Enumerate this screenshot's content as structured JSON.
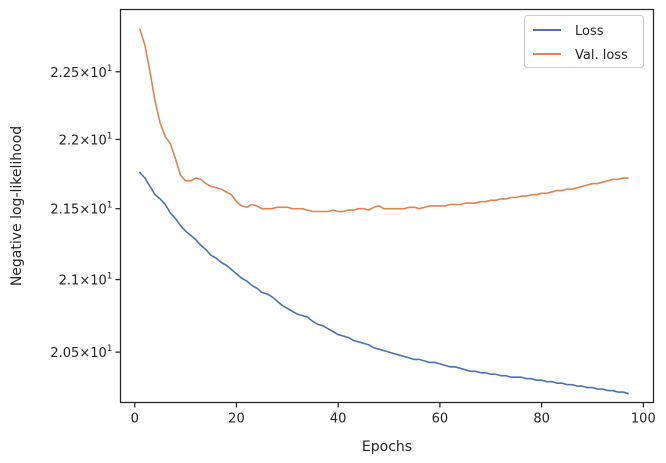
{
  "chart_data": {
    "type": "line",
    "title": "",
    "xlabel": "Epochs",
    "ylabel": "Negative log-likelihood",
    "xlim": [
      -2.8,
      102
    ],
    "ylim": [
      20.16,
      22.97
    ],
    "x_ticks": [
      0,
      20,
      40,
      60,
      80,
      100
    ],
    "x_tick_labels": [
      "0",
      "20",
      "40",
      "60",
      "80",
      "100"
    ],
    "y_ticks": [
      20.5,
      21.0,
      21.5,
      22.0,
      22.5
    ],
    "y_tick_labels": [
      {
        "mantissa": "2.05",
        "exp": "1"
      },
      {
        "mantissa": "2.1",
        "exp": "1"
      },
      {
        "mantissa": "2.15",
        "exp": "1"
      },
      {
        "mantissa": "2.2",
        "exp": "1"
      },
      {
        "mantissa": "2.25",
        "exp": "1"
      }
    ],
    "y_scale": "log",
    "grid": false,
    "legend_position": "top-right",
    "series": [
      {
        "name": "Loss",
        "color": "#4c72b0",
        "x": [
          1,
          2,
          3,
          4,
          5,
          6,
          7,
          8,
          9,
          10,
          11,
          12,
          13,
          14,
          15,
          16,
          17,
          18,
          19,
          20,
          21,
          22,
          23,
          24,
          25,
          26,
          27,
          28,
          29,
          30,
          31,
          32,
          33,
          34,
          35,
          36,
          37,
          38,
          39,
          40,
          41,
          42,
          43,
          44,
          45,
          46,
          47,
          48,
          49,
          50,
          51,
          52,
          53,
          54,
          55,
          56,
          57,
          58,
          59,
          60,
          61,
          62,
          63,
          64,
          65,
          66,
          67,
          68,
          69,
          70,
          71,
          72,
          73,
          74,
          75,
          76,
          77,
          78,
          79,
          80,
          81,
          82,
          83,
          84,
          85,
          86,
          87,
          88,
          89,
          90,
          91,
          92,
          93,
          94,
          95,
          96,
          97
        ],
        "values": [
          21.76,
          21.72,
          21.66,
          21.6,
          21.57,
          21.53,
          21.47,
          21.43,
          21.38,
          21.34,
          21.31,
          21.28,
          21.24,
          21.21,
          21.17,
          21.15,
          21.12,
          21.1,
          21.07,
          21.04,
          21.01,
          20.99,
          20.96,
          20.94,
          20.91,
          20.9,
          20.88,
          20.85,
          20.82,
          20.8,
          20.78,
          20.76,
          20.75,
          20.74,
          20.71,
          20.69,
          20.68,
          20.66,
          20.64,
          20.62,
          20.61,
          20.6,
          20.58,
          20.57,
          20.56,
          20.55,
          20.53,
          20.52,
          20.51,
          20.5,
          20.49,
          20.48,
          20.47,
          20.46,
          20.45,
          20.45,
          20.44,
          20.43,
          20.43,
          20.42,
          20.41,
          20.4,
          20.4,
          20.39,
          20.38,
          20.37,
          20.37,
          20.36,
          20.36,
          20.35,
          20.35,
          20.34,
          20.34,
          20.33,
          20.33,
          20.33,
          20.32,
          20.32,
          20.31,
          20.31,
          20.3,
          20.3,
          20.29,
          20.29,
          20.28,
          20.28,
          20.27,
          20.27,
          20.26,
          20.26,
          20.25,
          20.25,
          20.24,
          20.24,
          20.23,
          20.23,
          20.22
        ]
      },
      {
        "name": "Val. loss",
        "color": "#dd8452",
        "x": [
          1,
          2,
          3,
          4,
          5,
          6,
          7,
          8,
          9,
          10,
          11,
          12,
          13,
          14,
          15,
          16,
          17,
          18,
          19,
          20,
          21,
          22,
          23,
          24,
          25,
          26,
          27,
          28,
          29,
          30,
          31,
          32,
          33,
          34,
          35,
          36,
          37,
          38,
          39,
          40,
          41,
          42,
          43,
          44,
          45,
          46,
          47,
          48,
          49,
          50,
          51,
          52,
          53,
          54,
          55,
          56,
          57,
          58,
          59,
          60,
          61,
          62,
          63,
          64,
          65,
          66,
          67,
          68,
          69,
          70,
          71,
          72,
          73,
          74,
          75,
          76,
          77,
          78,
          79,
          80,
          81,
          82,
          83,
          84,
          85,
          86,
          87,
          88,
          89,
          90,
          91,
          92,
          93,
          94,
          95,
          96,
          97
        ],
        "values": [
          22.82,
          22.7,
          22.5,
          22.28,
          22.12,
          22.02,
          21.97,
          21.86,
          21.74,
          21.7,
          21.7,
          21.72,
          21.71,
          21.68,
          21.66,
          21.65,
          21.64,
          21.62,
          21.6,
          21.55,
          21.52,
          21.51,
          21.53,
          21.52,
          21.5,
          21.5,
          21.5,
          21.51,
          21.51,
          21.51,
          21.5,
          21.5,
          21.5,
          21.49,
          21.48,
          21.48,
          21.48,
          21.48,
          21.49,
          21.48,
          21.48,
          21.49,
          21.49,
          21.5,
          21.5,
          21.49,
          21.51,
          21.52,
          21.5,
          21.5,
          21.5,
          21.5,
          21.5,
          21.51,
          21.51,
          21.5,
          21.51,
          21.52,
          21.52,
          21.52,
          21.52,
          21.53,
          21.53,
          21.53,
          21.54,
          21.54,
          21.54,
          21.55,
          21.55,
          21.56,
          21.56,
          21.57,
          21.57,
          21.58,
          21.58,
          21.59,
          21.59,
          21.6,
          21.6,
          21.61,
          21.61,
          21.62,
          21.63,
          21.63,
          21.64,
          21.64,
          21.65,
          21.66,
          21.67,
          21.68,
          21.68,
          21.69,
          21.7,
          21.71,
          21.71,
          21.72,
          21.72
        ]
      }
    ]
  }
}
